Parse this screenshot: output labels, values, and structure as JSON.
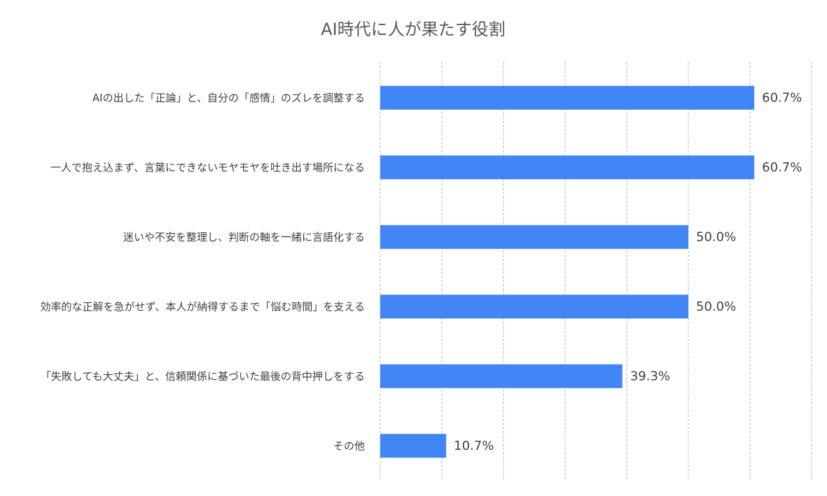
{
  "chart_data": {
    "type": "bar",
    "orientation": "horizontal",
    "title": "AI時代に人が果たす役割",
    "xlabel": "",
    "ylabel": "",
    "xlim": [
      0,
      70
    ],
    "grid": true,
    "legend": "none",
    "bar_color": "#4285F4",
    "categories": [
      "AIの出した「正論」と、自分の「感情」のズレを調整する",
      "一人で抱え込まず、言葉にできないモヤモヤを吐き出す場所になる",
      "迷いや不安を整理し、判断の軸を一緒に言語化する",
      "効率的な正解を急がせず、本人が納得するまで「悩む時間」を支える",
      "「失敗しても大丈夫」と、信頼関係に基づいた最後の背中押しをする",
      "その他"
    ],
    "values": [
      60.7,
      60.7,
      50.0,
      50.0,
      39.3,
      10.7
    ],
    "value_labels": [
      "60.7%",
      "60.7%",
      "50.0%",
      "50.0%",
      "39.3%",
      "10.7%"
    ]
  }
}
